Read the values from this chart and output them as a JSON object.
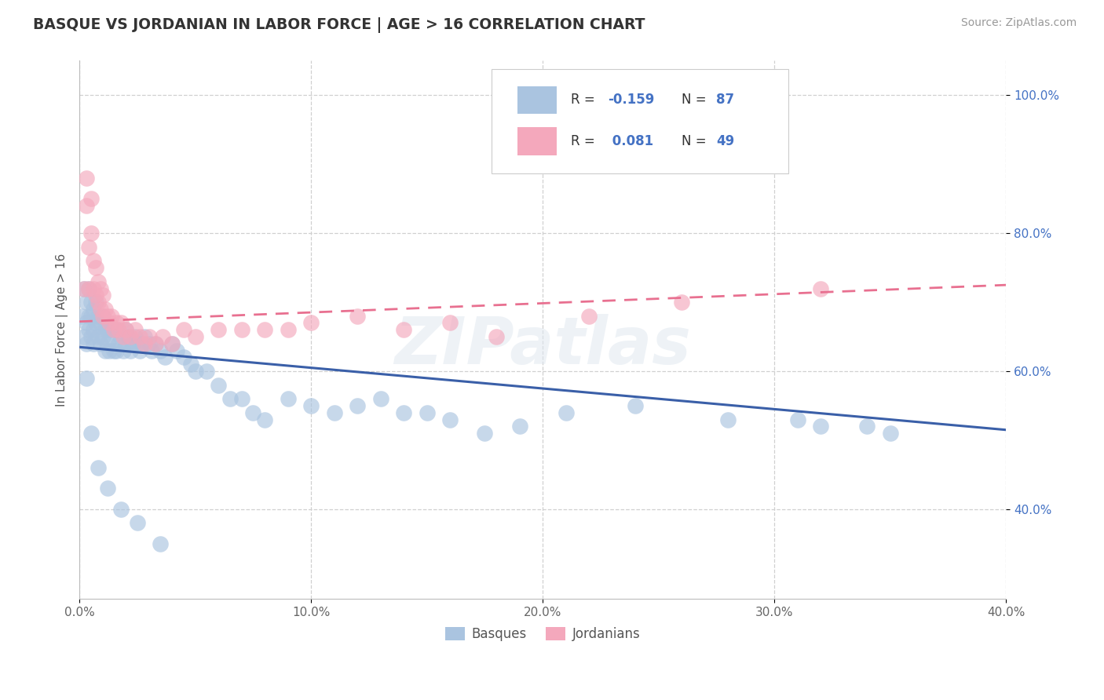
{
  "title": "BASQUE VS JORDANIAN IN LABOR FORCE | AGE > 16 CORRELATION CHART",
  "source": "Source: ZipAtlas.com",
  "ylabel": "In Labor Force | Age > 16",
  "xlim": [
    0.0,
    0.4
  ],
  "ylim": [
    0.27,
    1.05
  ],
  "xticklabels": [
    "0.0%",
    "10.0%",
    "20.0%",
    "30.0%",
    "40.0%"
  ],
  "xticks": [
    0.0,
    0.1,
    0.2,
    0.3,
    0.4
  ],
  "yticks": [
    0.4,
    0.6,
    0.8,
    1.0
  ],
  "yticklabels": [
    "40.0%",
    "60.0%",
    "80.0%",
    "100.0%"
  ],
  "blue_color": "#aac4e0",
  "pink_color": "#f4a8bc",
  "blue_line_color": "#3a5fa8",
  "pink_line_color": "#e87090",
  "legend_R1_label": "R = -0.159",
  "legend_N1_label": "N = 87",
  "legend_R2_label": "R =  0.081",
  "legend_N2_label": "N = 49",
  "watermark": "ZIPatlas",
  "blue_line_x0": 0.0,
  "blue_line_y0": 0.635,
  "blue_line_x1": 0.4,
  "blue_line_y1": 0.515,
  "pink_line_x0": 0.0,
  "pink_line_y0": 0.672,
  "pink_line_x1": 0.4,
  "pink_line_y1": 0.725
}
